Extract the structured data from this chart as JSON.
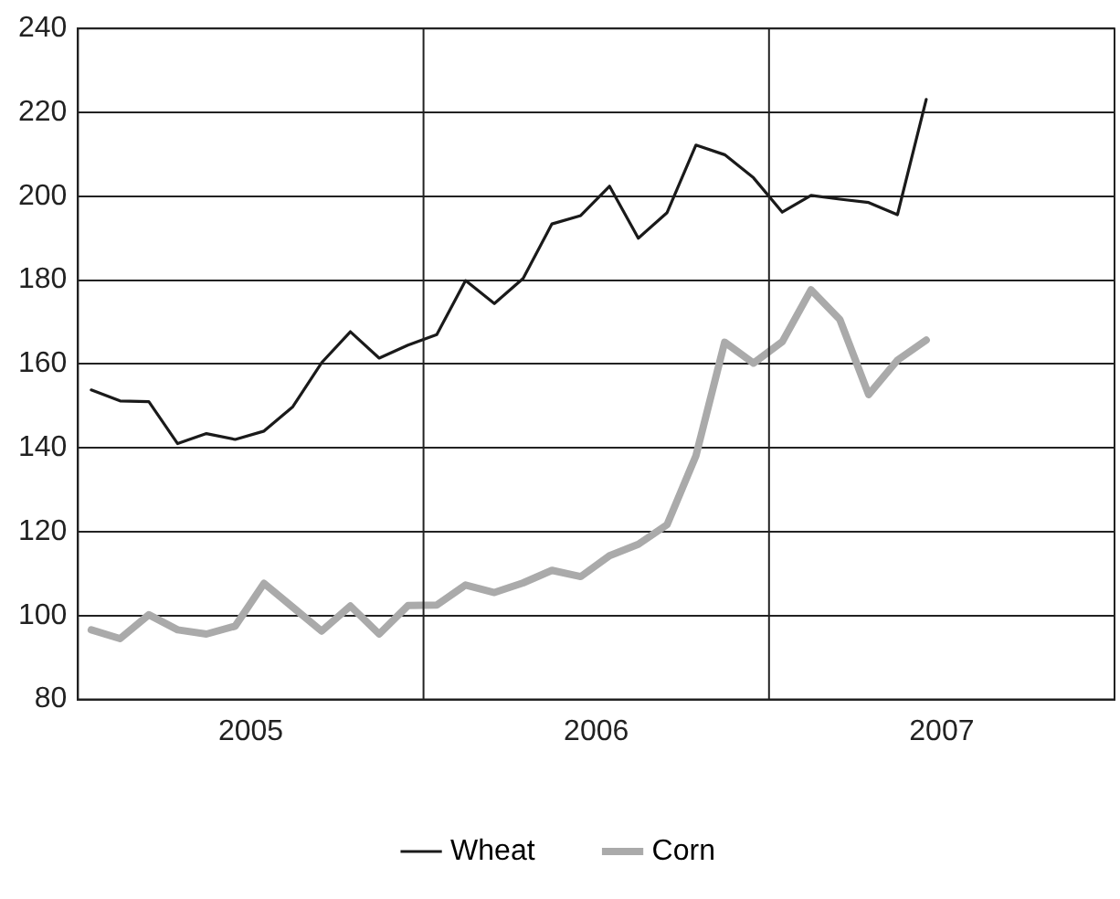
{
  "chart_data": {
    "type": "line",
    "x": [
      "2005-01-15",
      "2005-02-15",
      "2005-03-15",
      "2005-04-15",
      "2005-05-15",
      "2005-06-15",
      "2005-07-15",
      "2005-08-15",
      "2005-09-15",
      "2005-10-15",
      "2005-11-15",
      "2005-12-15",
      "2006-01-15",
      "2006-02-15",
      "2006-03-15",
      "2006-04-15",
      "2006-05-15",
      "2006-06-15",
      "2006-07-15",
      "2006-08-15",
      "2006-09-15",
      "2006-10-15",
      "2006-11-15",
      "2006-12-15",
      "2007-01-15",
      "2007-02-15",
      "2007-03-15",
      "2007-04-15",
      "2007-05-15",
      "2007-06-15"
    ],
    "series": [
      {
        "name": "Wheat",
        "color": "#1a1a1a",
        "values": [
          153.8,
          151.2,
          151,
          141,
          143.4,
          142,
          144,
          149.8,
          160.3,
          167.7,
          161.4,
          164.5,
          167,
          179.9,
          174.4,
          180.4,
          193.4,
          195.4,
          202.4,
          190,
          196.1,
          212.2,
          209.9,
          204.4,
          196.2,
          200.2,
          199.3,
          198.5,
          195.6,
          223.1
        ]
      },
      {
        "name": "Corn",
        "color": "#aaaaaa",
        "values": [
          96.6,
          94.5,
          100.2,
          96.6,
          95.6,
          97.5,
          107.7,
          102,
          96.3,
          102.3,
          95.6,
          102.4,
          102.5,
          107.3,
          105.5,
          107.8,
          110.8,
          109.3,
          114.3,
          117,
          121.7,
          138.1,
          165.2,
          160.2,
          165.3,
          177.7,
          170.6,
          152.7,
          160.9,
          165.7
        ]
      }
    ],
    "xlim": [
      "2005-01-01",
      "2008-01-01"
    ],
    "xticks": [
      {
        "value": "2005-07-01",
        "label": "2005"
      },
      {
        "value": "2006-07-01",
        "label": "2006"
      },
      {
        "value": "2007-07-01",
        "label": "2007"
      }
    ],
    "ylim": [
      80,
      240
    ],
    "yticks": [
      80,
      100,
      120,
      140,
      160,
      180,
      200,
      220,
      240
    ],
    "ref_lines": [
      {
        "axis": "x",
        "value": "2006-01-01"
      },
      {
        "axis": "x",
        "value": "2007-01-01"
      }
    ],
    "grid": "y",
    "legend": "bottom",
    "marker": "none",
    "line_style": "solid"
  }
}
